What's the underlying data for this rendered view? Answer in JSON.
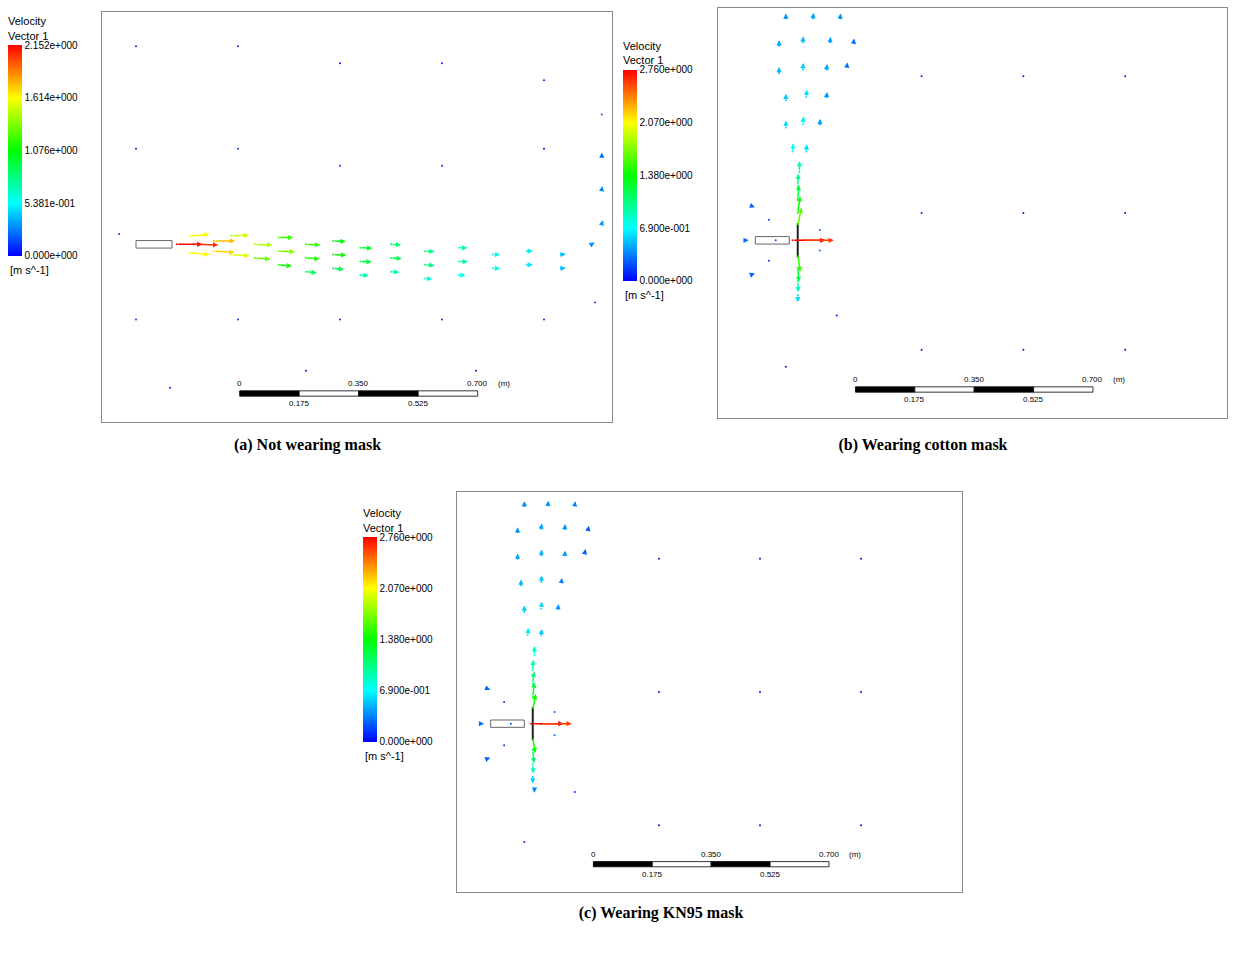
{
  "chart_data": [
    {
      "type": "vector",
      "title": "(a) Not wearing mask",
      "colorbar_title": [
        "Velocity",
        "Vector 1"
      ],
      "colorbar_unit": "[m s^-1]",
      "colorbar_range": [
        0,
        2.152
      ],
      "colorbar_ticks": [
        {
          "value": 0,
          "label": "0.000e+000"
        },
        {
          "value": 0.5381,
          "label": "5.381e-001"
        },
        {
          "value": 1.076,
          "label": "1.076e+000"
        },
        {
          "value": 1.614,
          "label": "1.614e+000"
        },
        {
          "value": 2.152,
          "label": "2.152e+000"
        }
      ],
      "xlim": [
        0,
        1.5
      ],
      "ylim": [
        0,
        1.2
      ],
      "tick_labels": false,
      "grid": false,
      "scale_bar": {
        "ticks": [
          0,
          0.175,
          {
            "value": 0.35,
            "label": "0.350"
          },
          0.525,
          {
            "value": 0.7,
            "label": "0.700"
          }
        ],
        "unit": "(m)"
      },
      "mouth": {
        "x": [
          0.1,
          0.206
        ],
        "y": 0.52
      },
      "vectors": [
        [
          0.22,
          0.52,
          2.15,
          0.0
        ],
        [
          0.27,
          0.52,
          2.05,
          -0.05
        ],
        [
          0.26,
          0.545,
          1.6,
          0.1
        ],
        [
          0.26,
          0.495,
          1.6,
          -0.15
        ],
        [
          0.33,
          0.53,
          1.75,
          0.0
        ],
        [
          0.33,
          0.5,
          1.7,
          -0.1
        ],
        [
          0.38,
          0.545,
          1.5,
          0.05
        ],
        [
          0.38,
          0.49,
          1.55,
          -0.1
        ],
        [
          0.45,
          0.52,
          1.45,
          -0.05
        ],
        [
          0.45,
          0.48,
          1.3,
          -0.1
        ],
        [
          0.52,
          0.54,
          1.2,
          0.0
        ],
        [
          0.52,
          0.5,
          1.35,
          -0.05
        ],
        [
          0.52,
          0.46,
          1.1,
          -0.1
        ],
        [
          0.6,
          0.52,
          1.2,
          -0.05
        ],
        [
          0.6,
          0.48,
          1.15,
          -0.08
        ],
        [
          0.6,
          0.44,
          0.9,
          -0.1
        ],
        [
          0.68,
          0.53,
          1.05,
          -0.05
        ],
        [
          0.68,
          0.49,
          1.1,
          -0.05
        ],
        [
          0.68,
          0.45,
          0.9,
          -0.1
        ],
        [
          0.76,
          0.51,
          1.0,
          -0.05
        ],
        [
          0.76,
          0.47,
          0.95,
          -0.05
        ],
        [
          0.76,
          0.43,
          0.7,
          -0.05
        ],
        [
          0.85,
          0.52,
          0.85,
          -0.03
        ],
        [
          0.85,
          0.48,
          0.9,
          -0.05
        ],
        [
          0.85,
          0.44,
          0.7,
          -0.05
        ],
        [
          0.95,
          0.5,
          0.8,
          -0.03
        ],
        [
          0.95,
          0.46,
          0.8,
          -0.05
        ],
        [
          0.95,
          0.42,
          0.6,
          -0.05
        ],
        [
          1.05,
          0.51,
          0.7,
          0.0
        ],
        [
          1.05,
          0.47,
          0.75,
          -0.03
        ],
        [
          1.05,
          0.43,
          0.55,
          -0.03
        ],
        [
          1.15,
          0.49,
          0.6,
          0.0
        ],
        [
          1.15,
          0.45,
          0.6,
          -0.02
        ],
        [
          1.25,
          0.5,
          0.5,
          0.02
        ],
        [
          1.25,
          0.46,
          0.5,
          0.0
        ],
        [
          1.35,
          0.49,
          0.4,
          0.05
        ],
        [
          1.35,
          0.45,
          0.4,
          0.03
        ],
        [
          1.44,
          0.52,
          0.25,
          0.15
        ],
        [
          1.47,
          0.58,
          0.1,
          0.3
        ],
        [
          1.47,
          0.68,
          0.05,
          0.3
        ],
        [
          1.47,
          0.78,
          0.0,
          0.25
        ],
        [
          1.47,
          0.9,
          0.0,
          0.2
        ],
        [
          0.1,
          1.1,
          0.05,
          -0.03
        ],
        [
          0.4,
          1.1,
          0.06,
          -0.02
        ],
        [
          0.7,
          1.05,
          0.05,
          -0.04
        ],
        [
          1.0,
          1.05,
          0.06,
          -0.03
        ],
        [
          1.3,
          1.0,
          0.05,
          0.02
        ],
        [
          0.1,
          0.8,
          0.08,
          -0.02
        ],
        [
          0.4,
          0.8,
          0.1,
          -0.05
        ],
        [
          0.7,
          0.75,
          0.08,
          -0.06
        ],
        [
          1.0,
          0.75,
          0.08,
          -0.04
        ],
        [
          1.3,
          0.8,
          0.06,
          0.03
        ],
        [
          0.1,
          0.3,
          0.08,
          0.03
        ],
        [
          0.4,
          0.3,
          0.1,
          0.05
        ],
        [
          0.7,
          0.3,
          0.08,
          0.05
        ],
        [
          1.0,
          0.3,
          0.08,
          0.04
        ],
        [
          1.3,
          0.3,
          0.06,
          0.03
        ],
        [
          0.2,
          0.1,
          0.05,
          0.02
        ],
        [
          0.6,
          0.15,
          0.05,
          0.03
        ],
        [
          1.1,
          0.15,
          0.05,
          0.02
        ],
        [
          0.05,
          0.55,
          0.12,
          -0.01
        ],
        [
          1.45,
          0.35,
          0.05,
          0.1
        ]
      ]
    },
    {
      "type": "vector",
      "title": "(b) Wearing cotton mask",
      "colorbar_title": [
        "Velocity",
        "Vector 1"
      ],
      "colorbar_unit": "[m s^-1]",
      "colorbar_range": [
        0,
        2.76
      ],
      "colorbar_ticks": [
        {
          "value": 0,
          "label": "0.000e+000"
        },
        {
          "value": 0.69,
          "label": "6.900e-001"
        },
        {
          "value": 1.38,
          "label": "1.380e+000"
        },
        {
          "value": 2.07,
          "label": "2.070e+000"
        },
        {
          "value": 2.76,
          "label": "2.760e+000"
        }
      ],
      "xlim": [
        0,
        1.5
      ],
      "ylim": [
        0,
        1.2
      ],
      "tick_labels": false,
      "grid": false,
      "scale_bar": {
        "ticks": [
          0,
          0.175,
          {
            "value": 0.35,
            "label": "0.350"
          },
          0.525,
          {
            "value": 0.7,
            "label": "0.700"
          }
        ],
        "unit": "(m)"
      },
      "mouth": {
        "x": [
          0.11,
          0.21
        ],
        "y": 0.52
      },
      "mask": {
        "x": 0.235,
        "y": [
          0.47,
          0.57
        ]
      },
      "vectors": [
        [
          0.22,
          0.52,
          2.76,
          0.0
        ],
        [
          0.25,
          0.52,
          2.6,
          0.0
        ],
        [
          0.235,
          0.56,
          0.3,
          1.6
        ],
        [
          0.235,
          0.6,
          0.2,
          1.4
        ],
        [
          0.235,
          0.64,
          0.1,
          1.2
        ],
        [
          0.235,
          0.68,
          0.05,
          1.0
        ],
        [
          0.24,
          0.72,
          0.0,
          0.9
        ],
        [
          0.235,
          0.48,
          0.2,
          -1.5
        ],
        [
          0.235,
          0.44,
          0.1,
          -1.2
        ],
        [
          0.235,
          0.4,
          0.05,
          -0.9
        ],
        [
          0.235,
          0.36,
          0.0,
          -0.6
        ],
        [
          0.22,
          0.78,
          0.05,
          0.7
        ],
        [
          0.26,
          0.78,
          0.05,
          0.6
        ],
        [
          0.2,
          0.85,
          0.0,
          0.6
        ],
        [
          0.25,
          0.86,
          0.05,
          0.65
        ],
        [
          0.3,
          0.86,
          0.05,
          0.45
        ],
        [
          0.2,
          0.93,
          0.0,
          0.55
        ],
        [
          0.26,
          0.94,
          0.05,
          0.6
        ],
        [
          0.32,
          0.94,
          0.05,
          0.4
        ],
        [
          0.18,
          1.01,
          0.0,
          0.5
        ],
        [
          0.25,
          1.02,
          0.05,
          0.55
        ],
        [
          0.32,
          1.02,
          0.05,
          0.45
        ],
        [
          0.38,
          1.03,
          0.05,
          0.3
        ],
        [
          0.18,
          1.09,
          0.0,
          0.45
        ],
        [
          0.25,
          1.1,
          0.05,
          0.5
        ],
        [
          0.33,
          1.1,
          0.05,
          0.45
        ],
        [
          0.4,
          1.1,
          0.05,
          0.3
        ],
        [
          0.2,
          1.17,
          0.0,
          0.4
        ],
        [
          0.28,
          1.17,
          0.05,
          0.45
        ],
        [
          0.36,
          1.17,
          0.05,
          0.4
        ],
        [
          0.17,
          0.52,
          -0.2,
          0.05
        ],
        [
          0.15,
          0.58,
          0.1,
          0.1
        ],
        [
          0.15,
          0.46,
          0.1,
          -0.1
        ],
        [
          0.3,
          0.55,
          0.2,
          0.2
        ],
        [
          0.3,
          0.49,
          0.2,
          -0.2
        ],
        [
          0.08,
          0.52,
          0.3,
          0.0
        ],
        [
          0.1,
          0.62,
          0.25,
          -0.1
        ],
        [
          0.1,
          0.42,
          0.25,
          0.1
        ],
        [
          0.6,
          1.0,
          -0.05,
          0.05
        ],
        [
          0.9,
          1.0,
          -0.04,
          0.03
        ],
        [
          1.2,
          1.0,
          -0.03,
          0.02
        ],
        [
          0.6,
          0.6,
          -0.05,
          0.02
        ],
        [
          0.9,
          0.6,
          -0.04,
          0.02
        ],
        [
          1.2,
          0.6,
          -0.03,
          0.01
        ],
        [
          0.6,
          0.2,
          -0.04,
          0.03
        ],
        [
          0.9,
          0.2,
          -0.03,
          0.02
        ],
        [
          1.2,
          0.2,
          -0.03,
          0.02
        ],
        [
          0.2,
          0.15,
          0.02,
          0.05
        ],
        [
          0.35,
          0.3,
          -0.05,
          0.08
        ]
      ]
    },
    {
      "type": "vector",
      "title": "(c) Wearing KN95 mask",
      "colorbar_title": [
        "Velocity",
        "Vector 1"
      ],
      "colorbar_unit": "[m s^-1]",
      "colorbar_range": [
        0,
        2.76
      ],
      "colorbar_ticks": [
        {
          "value": 0,
          "label": "0.000e+000"
        },
        {
          "value": 0.69,
          "label": "6.900e-001"
        },
        {
          "value": 1.38,
          "label": "1.380e+000"
        },
        {
          "value": 2.07,
          "label": "2.070e+000"
        },
        {
          "value": 2.76,
          "label": "2.760e+000"
        }
      ],
      "xlim": [
        0,
        1.5
      ],
      "ylim": [
        0,
        1.2
      ],
      "tick_labels": false,
      "grid": false,
      "scale_bar": {
        "ticks": [
          0,
          0.175,
          {
            "value": 0.35,
            "label": "0.350"
          },
          0.525,
          {
            "value": 0.7,
            "label": "0.700"
          }
        ],
        "unit": "(m)"
      },
      "mouth": {
        "x": [
          0.1,
          0.2
        ],
        "y": 0.505
      },
      "mask": {
        "x": 0.225,
        "y": [
          0.455,
          0.555
        ]
      },
      "vectors": [
        [
          0.22,
          0.505,
          2.76,
          0.0
        ],
        [
          0.25,
          0.505,
          2.6,
          0.0
        ],
        [
          0.225,
          0.545,
          0.25,
          1.4
        ],
        [
          0.225,
          0.585,
          0.15,
          1.25
        ],
        [
          0.225,
          0.625,
          0.1,
          1.05
        ],
        [
          0.225,
          0.665,
          0.05,
          0.9
        ],
        [
          0.23,
          0.71,
          0.0,
          0.8
        ],
        [
          0.225,
          0.465,
          0.2,
          -1.4
        ],
        [
          0.225,
          0.425,
          0.1,
          -1.1
        ],
        [
          0.225,
          0.385,
          0.05,
          -0.85
        ],
        [
          0.225,
          0.345,
          0.0,
          -0.55
        ],
        [
          0.23,
          0.31,
          0.0,
          -0.35
        ],
        [
          0.21,
          0.77,
          0.05,
          0.65
        ],
        [
          0.25,
          0.77,
          0.05,
          0.55
        ],
        [
          0.2,
          0.84,
          0.0,
          0.55
        ],
        [
          0.25,
          0.85,
          0.05,
          0.6
        ],
        [
          0.3,
          0.85,
          0.05,
          0.4
        ],
        [
          0.19,
          0.92,
          0.0,
          0.5
        ],
        [
          0.25,
          0.93,
          0.05,
          0.55
        ],
        [
          0.31,
          0.93,
          0.05,
          0.35
        ],
        [
          0.18,
          1.0,
          0.0,
          0.45
        ],
        [
          0.25,
          1.01,
          0.05,
          0.5
        ],
        [
          0.32,
          1.01,
          0.05,
          0.4
        ],
        [
          0.38,
          1.02,
          0.05,
          0.25
        ],
        [
          0.18,
          1.08,
          0.0,
          0.4
        ],
        [
          0.25,
          1.09,
          0.05,
          0.45
        ],
        [
          0.32,
          1.09,
          0.05,
          0.4
        ],
        [
          0.39,
          1.09,
          0.05,
          0.25
        ],
        [
          0.2,
          1.16,
          0.0,
          0.35
        ],
        [
          0.27,
          1.16,
          0.05,
          0.4
        ],
        [
          0.35,
          1.16,
          0.05,
          0.35
        ],
        [
          0.16,
          0.505,
          -0.2,
          0.05
        ],
        [
          0.14,
          0.57,
          0.1,
          0.1
        ],
        [
          0.14,
          0.44,
          0.1,
          -0.1
        ],
        [
          0.29,
          0.54,
          0.2,
          0.2
        ],
        [
          0.29,
          0.47,
          0.2,
          -0.2
        ],
        [
          0.07,
          0.505,
          0.3,
          0.0
        ],
        [
          0.09,
          0.61,
          0.25,
          -0.1
        ],
        [
          0.09,
          0.4,
          0.25,
          0.1
        ],
        [
          0.6,
          1.0,
          -0.05,
          0.05
        ],
        [
          0.9,
          1.0,
          -0.04,
          0.03
        ],
        [
          1.2,
          1.0,
          -0.03,
          0.02
        ],
        [
          0.6,
          0.6,
          -0.05,
          0.02
        ],
        [
          0.9,
          0.6,
          -0.04,
          0.02
        ],
        [
          1.2,
          0.6,
          -0.03,
          0.01
        ],
        [
          0.6,
          0.2,
          -0.04,
          0.03
        ],
        [
          0.9,
          0.2,
          -0.03,
          0.02
        ],
        [
          1.2,
          0.2,
          -0.03,
          0.02
        ],
        [
          0.2,
          0.15,
          0.02,
          0.05
        ],
        [
          0.35,
          0.3,
          -0.05,
          0.08
        ]
      ]
    }
  ]
}
